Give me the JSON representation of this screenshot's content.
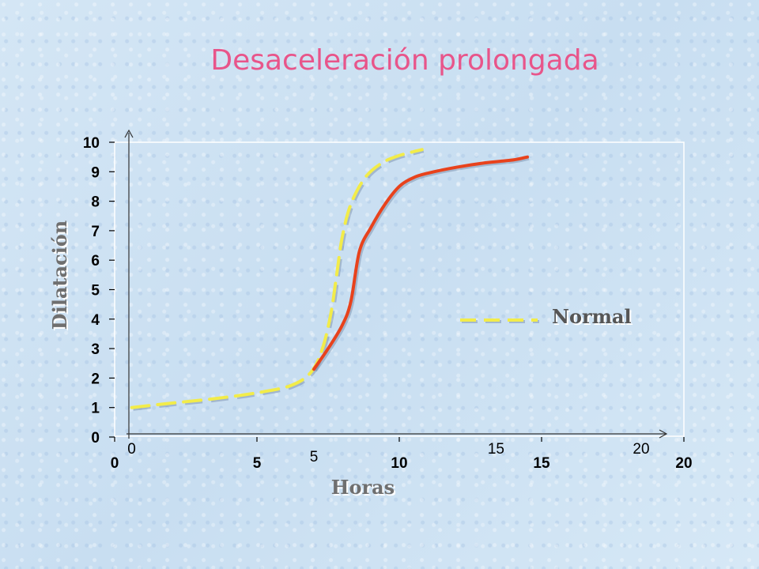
{
  "chart_data": {
    "type": "line",
    "title": "Desaceleración prolongada",
    "xlabel": "Horas",
    "ylabel": "Dilatación",
    "xlim": [
      0,
      20
    ],
    "ylim": [
      0,
      10
    ],
    "x_ticks": [
      "0",
      "5",
      "10",
      "15",
      "20"
    ],
    "y_ticks": [
      "0",
      "1",
      "2",
      "3",
      "4",
      "5",
      "6",
      "7",
      "8",
      "9",
      "10"
    ],
    "extra_x_labels": [
      {
        "text": "0",
        "x": 0.6
      },
      {
        "text": "5",
        "x": 7.0
      },
      {
        "text": "15",
        "x": 13.4
      },
      {
        "text": "20",
        "x": 18.5
      }
    ],
    "grid": false,
    "legend": {
      "position": "right",
      "entries": [
        "Normal"
      ]
    },
    "series": [
      {
        "name": "Normal",
        "style": "dashed",
        "color": "#f2ec4a",
        "x": [
          0.6,
          2.0,
          3.5,
          5.0,
          6.2,
          6.9,
          7.3,
          7.6,
          7.8,
          8.0,
          8.3,
          8.8,
          9.4,
          10.0,
          10.8
        ],
        "y": [
          1.0,
          1.15,
          1.3,
          1.5,
          1.75,
          2.2,
          3.0,
          4.2,
          5.5,
          6.8,
          7.9,
          8.8,
          9.3,
          9.55,
          9.75
        ]
      },
      {
        "style": "solid",
        "color": "#e8421c",
        "x": [
          7.0,
          7.5,
          8.0,
          8.3,
          8.6,
          9.0,
          9.5,
          10.0,
          10.5,
          11.0,
          12.0,
          13.0,
          14.0,
          14.5
        ],
        "y": [
          2.3,
          3.0,
          3.8,
          4.6,
          6.3,
          7.1,
          7.9,
          8.5,
          8.8,
          8.95,
          9.15,
          9.3,
          9.4,
          9.5
        ]
      }
    ]
  }
}
